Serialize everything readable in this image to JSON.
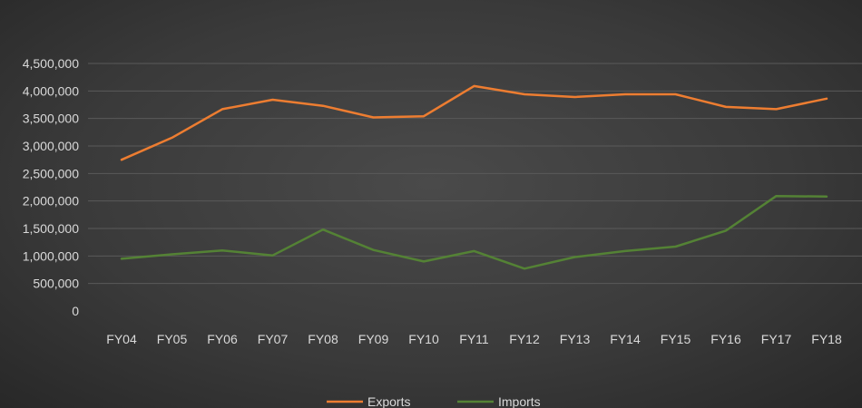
{
  "chart_data": {
    "type": "line",
    "categories": [
      "FY04",
      "FY05",
      "FY06",
      "FY07",
      "FY08",
      "FY09",
      "FY10",
      "FY11",
      "FY12",
      "FY13",
      "FY14",
      "FY15",
      "FY16",
      "FY17",
      "FY18"
    ],
    "series": [
      {
        "name": "Exports",
        "color": "#ed7d31",
        "values": [
          2750000,
          3150000,
          3670000,
          3840000,
          3730000,
          3520000,
          3540000,
          4090000,
          3940000,
          3890000,
          3940000,
          3940000,
          3710000,
          3670000,
          3860000
        ]
      },
      {
        "name": "Imports",
        "color": "#548235",
        "values": [
          950000,
          1030000,
          1100000,
          1010000,
          1480000,
          1110000,
          900000,
          1090000,
          770000,
          980000,
          1090000,
          1170000,
          1460000,
          2090000,
          2080000
        ]
      }
    ],
    "ylim": [
      0,
      4500000
    ],
    "yticks": [
      "0",
      "500,000",
      "1,000,000",
      "1,500,000",
      "2,000,000",
      "2,500,000",
      "3,000,000",
      "3,500,000",
      "4,000,000",
      "4,500,000"
    ],
    "ytick_values": [
      0,
      500000,
      1000000,
      1500000,
      2000000,
      2500000,
      3000000,
      3500000,
      4000000,
      4500000
    ],
    "grid": true,
    "legend_position": "bottom",
    "title": "",
    "xlabel": "",
    "ylabel": ""
  }
}
